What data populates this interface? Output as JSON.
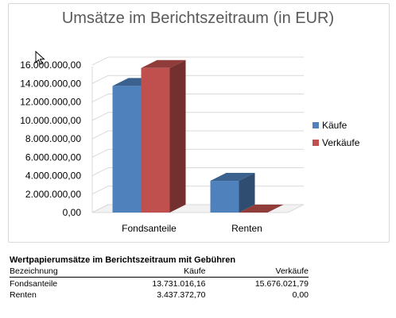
{
  "chart_data": {
    "type": "bar",
    "title": "Umsätze im Berichtszeitraum (in EUR)",
    "categories": [
      "Fondsanteile",
      "Renten"
    ],
    "series": [
      {
        "name": "Käufe",
        "values": [
          13731016.16,
          3437372.7
        ],
        "color": "#4f81bd"
      },
      {
        "name": "Verkäufe",
        "values": [
          15676021.79,
          0.0
        ],
        "color": "#c0504d"
      }
    ],
    "ylim": [
      0,
      16000000
    ],
    "yticks": [
      0,
      2000000,
      4000000,
      6000000,
      8000000,
      10000000,
      12000000,
      14000000,
      16000000
    ],
    "ytick_labels": [
      "0,00",
      "2.000.000,00",
      "4.000.000,00",
      "6.000.000,00",
      "8.000.000,00",
      "10.000.000,00",
      "12.000.000,00",
      "14.000.000,00",
      "16.000.000,00"
    ],
    "grid": true,
    "three_d": true,
    "legend_position": "right"
  },
  "table": {
    "title": "Wertpapierumsätze im Berichtszeitraum mit Gebühren",
    "headers": [
      "Bezeichnung",
      "Käufe",
      "Verkäufe"
    ],
    "rows": [
      [
        "Fondsanteile",
        "13.731.016,16",
        "15.676.021,79"
      ],
      [
        "Renten",
        "3.437.372,70",
        "0,00"
      ]
    ]
  }
}
